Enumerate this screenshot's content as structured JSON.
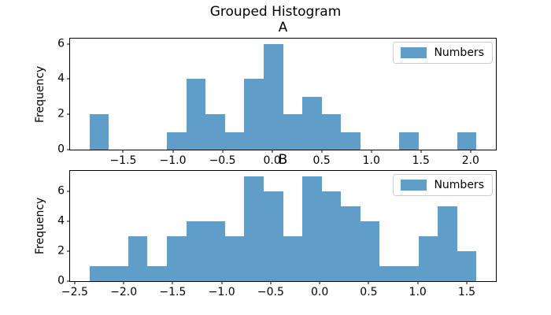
{
  "figure": {
    "title": "Grouped Histogram",
    "background_color": "#ffffff",
    "text_color": "#000000",
    "axis_color": "#000000",
    "bar_color": "#5F9EC9",
    "legend_border_color": "#cccccc"
  },
  "chart_data": [
    {
      "id": "A",
      "type": "bar",
      "subtype": "histogram",
      "title": "A",
      "xlabel": "",
      "ylabel": "Frequency",
      "legend": {
        "label": "Numbers",
        "position": "upper right"
      },
      "grid": false,
      "bins": {
        "start": -1.84,
        "width": 0.195,
        "counts": [
          2,
          0,
          0,
          0,
          1,
          4,
          2,
          1,
          4,
          6,
          2,
          3,
          2,
          1,
          0,
          0,
          1,
          0,
          0,
          1
        ]
      },
      "xlim": [
        -2.035,
        2.255
      ],
      "ylim": [
        0,
        6.3
      ],
      "xticks": {
        "values": [
          -1.5,
          -1.0,
          -0.5,
          0.0,
          0.5,
          1.0,
          1.5,
          2.0
        ],
        "labels": [
          "−1.5",
          "−1.0",
          "−0.5",
          "0.0",
          "0.5",
          "1.0",
          "1.5",
          "2.0"
        ]
      },
      "yticks": {
        "values": [
          0,
          2,
          4,
          6
        ],
        "labels": [
          "0",
          "2",
          "4",
          "6"
        ]
      }
    },
    {
      "id": "B",
      "type": "bar",
      "subtype": "histogram",
      "title": "B",
      "xlabel": "",
      "ylabel": "Frequency",
      "legend": {
        "label": "Numbers",
        "position": "upper right"
      },
      "grid": false,
      "bins": {
        "start": -2.35,
        "width": 0.1975,
        "counts": [
          1,
          1,
          3,
          1,
          3,
          4,
          4,
          3,
          7,
          6,
          3,
          7,
          6,
          5,
          4,
          1,
          1,
          3,
          5,
          2
        ]
      },
      "xlim": [
        -2.5475,
        1.7975
      ],
      "ylim": [
        0,
        7.35
      ],
      "xticks": {
        "values": [
          -2.5,
          -2.0,
          -1.5,
          -1.0,
          -0.5,
          0.0,
          0.5,
          1.0,
          1.5
        ],
        "labels": [
          "−2.5",
          "−2.0",
          "−1.5",
          "−1.0",
          "−0.5",
          "0.0",
          "0.5",
          "1.0",
          "1.5"
        ]
      },
      "yticks": {
        "values": [
          0,
          2,
          4,
          6
        ],
        "labels": [
          "0",
          "2",
          "4",
          "6"
        ]
      }
    }
  ]
}
